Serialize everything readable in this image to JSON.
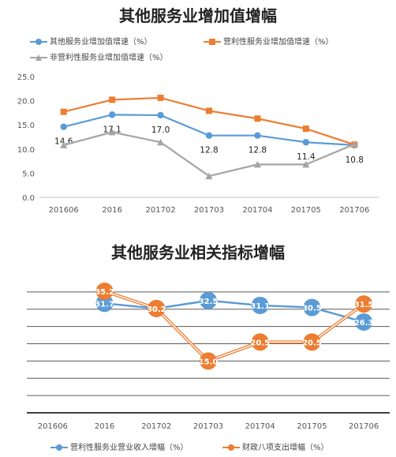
{
  "chart_data": [
    {
      "type": "line",
      "title": "其他服务业增加值增幅",
      "categories": [
        "201606",
        "2016",
        "201702",
        "201703",
        "201704",
        "201705",
        "201706"
      ],
      "ylim": [
        0,
        25
      ],
      "yticks": [
        "0.0",
        "5.0",
        "10.0",
        "15.0",
        "20.0",
        "25.0"
      ],
      "legend_position": "top",
      "grid": false,
      "series": [
        {
          "name": "其他服务业增加值增速（%）",
          "color": "#5B9BD5",
          "marker": "circle",
          "values": [
            14.6,
            17.1,
            17.0,
            12.8,
            12.8,
            11.4,
            10.8
          ],
          "labels": [
            "14.6",
            "17.1",
            "17.0",
            "12.8",
            "12.8",
            "11.4",
            "10.8"
          ]
        },
        {
          "name": "营利性服务业增加值增速（%）",
          "color": "#ED7D31",
          "marker": "square",
          "values": [
            17.7,
            20.2,
            20.6,
            17.9,
            16.3,
            14.2,
            10.9
          ]
        },
        {
          "name": "非营利性服务业增加值增速（%）",
          "color": "#A5A5A5",
          "marker": "triangle",
          "values": [
            10.8,
            13.5,
            11.4,
            4.4,
            6.8,
            6.8,
            11.0
          ]
        }
      ]
    },
    {
      "type": "line",
      "title": "其他服务业相关指标增幅",
      "categories": [
        "201606",
        "2016",
        "201702",
        "201703",
        "201704",
        "201705",
        "201706"
      ],
      "ylim": [
        0,
        40
      ],
      "legend_position": "bottom",
      "grid": true,
      "series": [
        {
          "name": "营利性服务业营业收入增幅（%）",
          "color": "#5B9BD5",
          "marker": "circle",
          "values": [
            null,
            31.7,
            30.2,
            32.5,
            31.1,
            30.5,
            26.3
          ],
          "labels": [
            "",
            "31.7",
            "30.2",
            "32.5",
            "31.1",
            "30.5",
            "26.3"
          ]
        },
        {
          "name": "财政八项支出增幅（%）",
          "color": "#ED7D31",
          "marker": "circle",
          "values": [
            null,
            35.2,
            30.2,
            15.0,
            20.5,
            20.5,
            31.5
          ],
          "labels": [
            "",
            "35.2",
            "30.2",
            "15.0",
            "20.5",
            "20.5",
            "31.5"
          ]
        }
      ]
    }
  ]
}
